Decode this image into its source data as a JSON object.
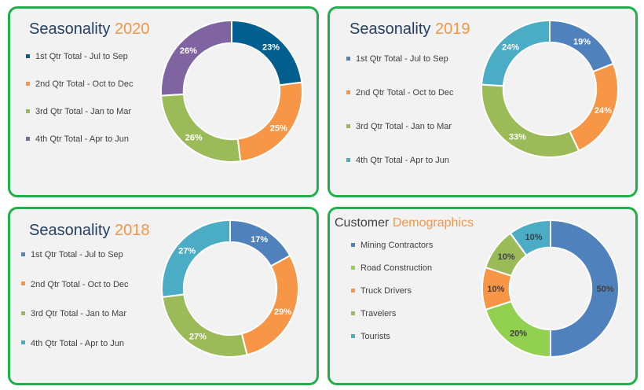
{
  "chart_data": [
    {
      "type": "pie",
      "title": "Seasonality",
      "title_accent": "2020",
      "categories": [
        "1st Qtr Total - Jul to Sep",
        "2nd Qtr Total - Oct to Dec",
        "3rd Qtr Total - Jan to Mar",
        "4th Qtr Total - Apr to Jun"
      ],
      "values": [
        23,
        25,
        26,
        26
      ],
      "labels": [
        "23%",
        "25%",
        "26%",
        "26%"
      ],
      "colors": [
        "#005f8f",
        "#f79646",
        "#9bbb59",
        "#8064a2"
      ],
      "label_color": "#ffffff",
      "hole": 0.68,
      "legend": "left"
    },
    {
      "type": "pie",
      "title": "Seasonality",
      "title_accent": "2019",
      "categories": [
        "1st Qtr Total - Jul to Sep",
        "2nd Qtr Total - Oct to Dec",
        "3rd Qtr Total - Jan to Mar",
        "4th Qtr Total - Apr to Jun"
      ],
      "values": [
        19,
        24,
        33,
        24
      ],
      "labels": [
        "19%",
        "24%",
        "33%",
        "24%"
      ],
      "colors": [
        "#4f81bd",
        "#f79646",
        "#9bbb59",
        "#4bacc6"
      ],
      "label_color": "#ffffff",
      "hole": 0.68,
      "legend": "left"
    },
    {
      "type": "pie",
      "title": "Seasonality",
      "title_accent": "2018",
      "categories": [
        "1st Qtr Total - Jul to Sep",
        "2nd Qtr Total - Oct to Dec",
        "3rd Qtr Total - Jan to Mar",
        "4th Qtr Total - Apr to Jun"
      ],
      "values": [
        17,
        29,
        27,
        27
      ],
      "labels": [
        "17%",
        "29%",
        "27%",
        "27%"
      ],
      "colors": [
        "#4f81bd",
        "#f79646",
        "#9bbb59",
        "#4bacc6"
      ],
      "label_color": "#ffffff",
      "hole": 0.68,
      "legend": "left"
    },
    {
      "type": "pie",
      "title": "Customer",
      "title_accent": "Demographics",
      "categories": [
        "Mining Contractors",
        "Road Construction",
        "Truck Drivers",
        "Travelers",
        "Tourists"
      ],
      "values": [
        50,
        20,
        10,
        10,
        10
      ],
      "labels": [
        "50%",
        "20%",
        "10%",
        "10%",
        "10%"
      ],
      "colors": [
        "#4f81bd",
        "#92d050",
        "#f79646",
        "#9bbb59",
        "#4bacc6"
      ],
      "label_color": "#404040",
      "hole": 0.6,
      "legend": "left"
    }
  ],
  "accent_color": "#f79646",
  "title_color": "#243f60",
  "border_color": "#1fb04b"
}
